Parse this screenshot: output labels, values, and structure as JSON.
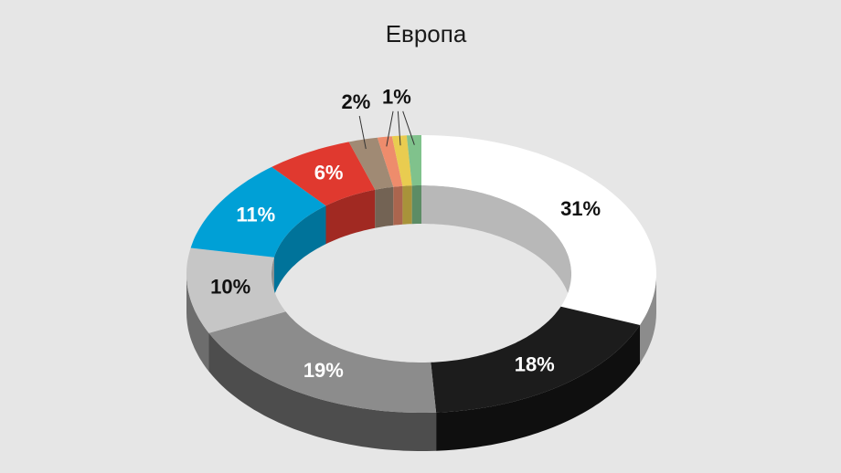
{
  "chart_data": {
    "type": "pie",
    "title": "Европа",
    "values": [
      31,
      18,
      19,
      10,
      11,
      6,
      2,
      1,
      1,
      1
    ],
    "value_labels": [
      "31%",
      "18%",
      "19%",
      "10%",
      "11%",
      "6%",
      "2%",
      "1%",
      null,
      null
    ],
    "colors": [
      "#ffffff",
      "#1c1c1c",
      "#8c8c8c",
      "#c6c6c6",
      "#00a0d6",
      "#e0392f",
      "#a08a74",
      "#ee8c6c",
      "#e9cc50",
      "#80c28c"
    ],
    "donut": true
  }
}
